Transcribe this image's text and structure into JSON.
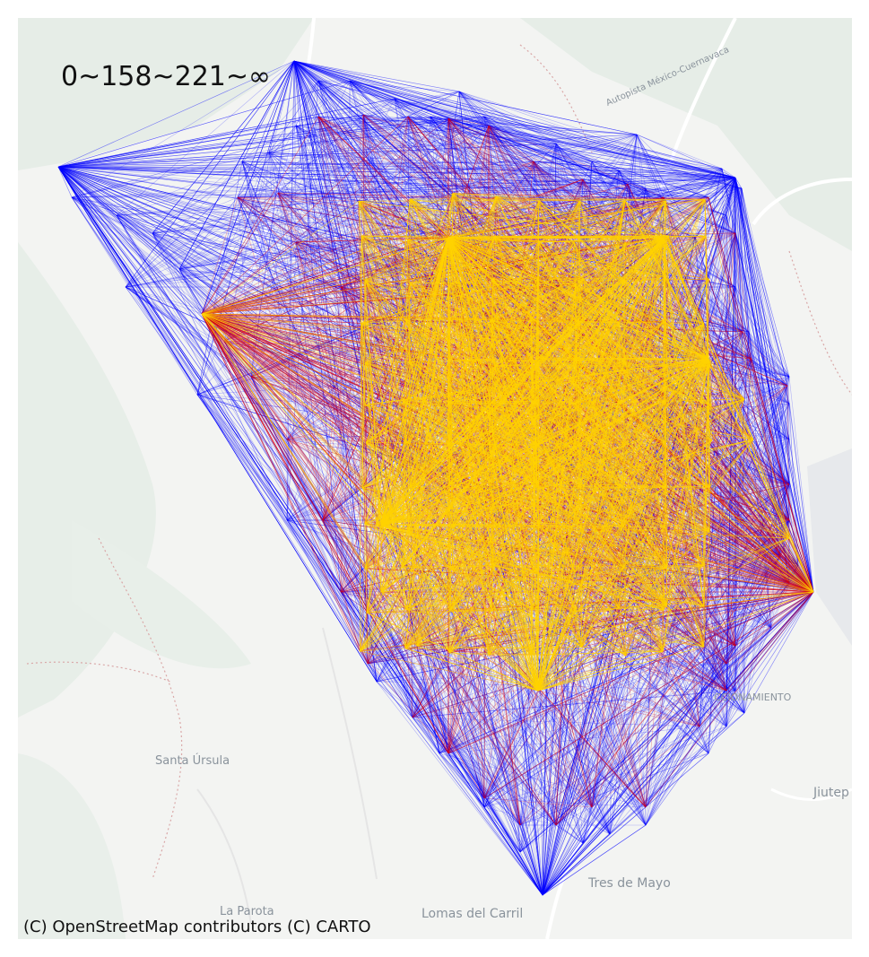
{
  "map": {
    "title": "0~158~221~∞",
    "attribution": "(C) OpenStreetMap contributors (C) CARTO",
    "places": {
      "santa_ursula": "Santa Úrsula",
      "la_parota": "La Parota",
      "lomas_del_carril": "Lomas del Carril",
      "tres_de_mayo": "Tres de Mayo",
      "jiutepec": "Jiutep",
      "fraccionamiento": "CCIONAMIENTO",
      "autopista": "Autopista México-Cuernavaca"
    },
    "layers": {
      "outer": {
        "name": "221~∞",
        "color": "#0000ff"
      },
      "middle": {
        "name": "158~221",
        "color": "#d4001a"
      },
      "inner": {
        "name": "0~158",
        "color": "#ffd400"
      }
    },
    "basemap_colors": {
      "land": "#f3f4f2",
      "vegetation": "#e3ebe4",
      "roads": "#ffffff"
    }
  }
}
